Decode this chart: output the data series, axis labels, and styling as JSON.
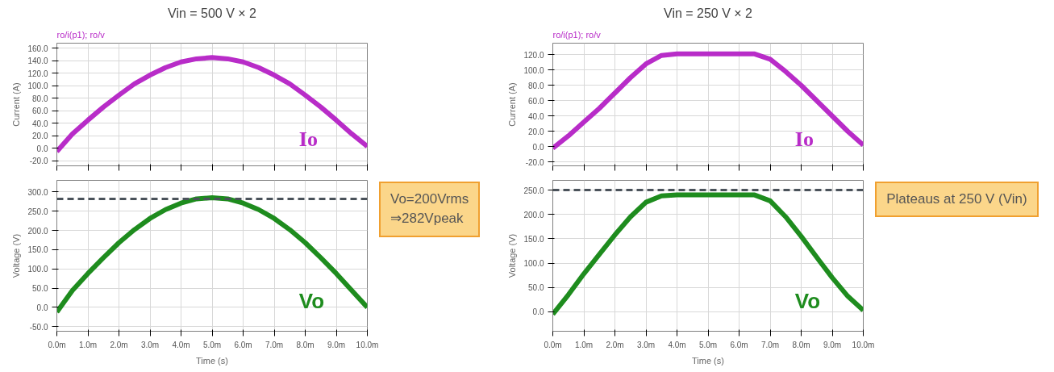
{
  "chart_data": [
    {
      "type": "line",
      "title": "Vin = 500 V × 2",
      "subtitle": "ro/i(p1); ro/v",
      "ylabel": "Current (A)",
      "x": [
        0,
        0.5,
        1,
        1.5,
        2,
        2.5,
        3,
        3.5,
        4,
        4.5,
        5,
        5.5,
        6,
        6.5,
        7,
        7.5,
        8,
        8.5,
        9,
        9.5,
        10
      ],
      "series": [
        {
          "name": "Io",
          "color": "#b82cc8",
          "values": [
            -5,
            23,
            45,
            66,
            85,
            103,
            117,
            129,
            138,
            143,
            145,
            143,
            138,
            129,
            117,
            103,
            85,
            66,
            45,
            23,
            3
          ]
        }
      ],
      "xlim": [
        0,
        10
      ],
      "ylim": [
        -28,
        168
      ],
      "yticks": [
        {
          "value": -20,
          "label": "-20.0"
        },
        {
          "value": 0,
          "label": "0.0"
        },
        {
          "value": 20,
          "label": "20.0"
        },
        {
          "value": 40,
          "label": "40.0"
        },
        {
          "value": 60,
          "label": "60.0"
        },
        {
          "value": 80,
          "label": "80.0"
        },
        {
          "value": 100,
          "label": "100.0"
        },
        {
          "value": 120,
          "label": "120.0"
        },
        {
          "value": 140,
          "label": "140.0"
        },
        {
          "value": 160,
          "label": "160.0"
        }
      ],
      "xticks": [
        0,
        1,
        2,
        3,
        4,
        5,
        6,
        7,
        8,
        9,
        10
      ],
      "grid": true,
      "tick_labels": "y"
    },
    {
      "type": "line",
      "xlabel": "Time (s)",
      "ylabel": "Voltage (V)",
      "annotations": [
        "Vo=200Vrms\n⇒282Vpeak"
      ],
      "x": [
        0,
        0.5,
        1,
        1.5,
        2,
        2.5,
        3,
        3.5,
        4,
        4.5,
        5,
        5.5,
        6,
        6.5,
        7,
        7.5,
        8,
        8.5,
        9,
        9.5,
        10
      ],
      "series": [
        {
          "name": "Vo",
          "color": "#1e8c1e",
          "values": [
            -12,
            44,
            88,
            129,
            168,
            202,
            231,
            254,
            271,
            282,
            285,
            282,
            271,
            254,
            231,
            202,
            168,
            129,
            88,
            44,
            0
          ]
        }
      ],
      "ref_lines": [
        {
          "axis": "y",
          "value": 282,
          "color": "#4a525a",
          "line_style": "dashed"
        }
      ],
      "xlim": [
        0,
        10
      ],
      "ylim": [
        -62,
        330
      ],
      "yticks": [
        {
          "value": -50,
          "label": "-50.0"
        },
        {
          "value": 0,
          "label": "0.0"
        },
        {
          "value": 50,
          "label": "50.0"
        },
        {
          "value": 100,
          "label": "100.0"
        },
        {
          "value": 150,
          "label": "150.0"
        },
        {
          "value": 200,
          "label": "200.0"
        },
        {
          "value": 250,
          "label": "250.0"
        },
        {
          "value": 300,
          "label": "300.0"
        }
      ],
      "xticks": [
        {
          "value": 0,
          "label": "0.0m"
        },
        {
          "value": 1,
          "label": "1.0m"
        },
        {
          "value": 2,
          "label": "2.0m"
        },
        {
          "value": 3,
          "label": "3.0m"
        },
        {
          "value": 4,
          "label": "4.0m"
        },
        {
          "value": 5,
          "label": "5.0m"
        },
        {
          "value": 6,
          "label": "6.0m"
        },
        {
          "value": 7,
          "label": "7.0m"
        },
        {
          "value": 8,
          "label": "8.0m"
        },
        {
          "value": 9,
          "label": "9.0m"
        },
        {
          "value": 10,
          "label": "10.0m"
        }
      ],
      "grid": true
    },
    {
      "type": "line",
      "title": "Vin = 250 V × 2",
      "subtitle": "ro/i(p1); ro/v",
      "ylabel": "Current (A)",
      "x": [
        0,
        0.5,
        1,
        1.5,
        2,
        2.5,
        3,
        3.5,
        4,
        4.5,
        5,
        5.5,
        6,
        6.5,
        7,
        7.5,
        8,
        8.5,
        9,
        9.5,
        10
      ],
      "series": [
        {
          "name": "Io",
          "color": "#b82cc8",
          "values": [
            -2,
            14,
            32,
            50,
            70,
            90,
            108,
            119,
            121,
            121,
            121,
            121,
            121,
            121,
            114,
            98,
            80,
            60,
            40,
            20,
            2
          ]
        }
      ],
      "xlim": [
        0,
        10
      ],
      "ylim": [
        -25,
        135
      ],
      "yticks": [
        {
          "value": -20,
          "label": "-20.0"
        },
        {
          "value": 0,
          "label": "0.0"
        },
        {
          "value": 20,
          "label": "20.0"
        },
        {
          "value": 40,
          "label": "40.0"
        },
        {
          "value": 60,
          "label": "60.0"
        },
        {
          "value": 80,
          "label": "80.0"
        },
        {
          "value": 100,
          "label": "100.0"
        },
        {
          "value": 120,
          "label": "120.0"
        }
      ],
      "xticks": [
        0,
        1,
        2,
        3,
        4,
        5,
        6,
        7,
        8,
        9,
        10
      ],
      "grid": true,
      "tick_labels": "y"
    },
    {
      "type": "line",
      "xlabel": "Time (s)",
      "ylabel": "Voltage (V)",
      "annotations": [
        "Plateaus at 250 V (Vin)"
      ],
      "x": [
        0,
        0.5,
        1,
        1.5,
        2,
        2.5,
        3,
        3.5,
        4,
        4.5,
        5,
        5.5,
        6,
        6.5,
        7,
        7.5,
        8,
        8.5,
        9,
        9.5,
        10
      ],
      "series": [
        {
          "name": "Vo",
          "color": "#1e8c1e",
          "values": [
            -5,
            35,
            78,
            118,
            158,
            195,
            225,
            238,
            240,
            240,
            240,
            240,
            240,
            240,
            228,
            195,
            155,
            112,
            70,
            32,
            3
          ]
        }
      ],
      "ref_lines": [
        {
          "axis": "y",
          "value": 250,
          "color": "#4a525a",
          "line_style": "dashed"
        }
      ],
      "xlim": [
        0,
        10
      ],
      "ylim": [
        -40,
        270
      ],
      "yticks": [
        {
          "value": 0,
          "label": "0.0"
        },
        {
          "value": 50,
          "label": "50.0"
        },
        {
          "value": 100,
          "label": "100.0"
        },
        {
          "value": 150,
          "label": "150.0"
        },
        {
          "value": 200,
          "label": "200.0"
        },
        {
          "value": 250,
          "label": "250.0"
        }
      ],
      "xticks": [
        {
          "value": 0,
          "label": "0.0m"
        },
        {
          "value": 1,
          "label": "1.0m"
        },
        {
          "value": 2,
          "label": "2.0m"
        },
        {
          "value": 3,
          "label": "3.0m"
        },
        {
          "value": 4,
          "label": "4.0m"
        },
        {
          "value": 5,
          "label": "5.0m"
        },
        {
          "value": 6,
          "label": "6.0m"
        },
        {
          "value": 7,
          "label": "7.0m"
        },
        {
          "value": 8,
          "label": "8.0m"
        },
        {
          "value": 9,
          "label": "9.0m"
        },
        {
          "value": 10,
          "label": "10.0m"
        }
      ],
      "grid": true
    }
  ]
}
